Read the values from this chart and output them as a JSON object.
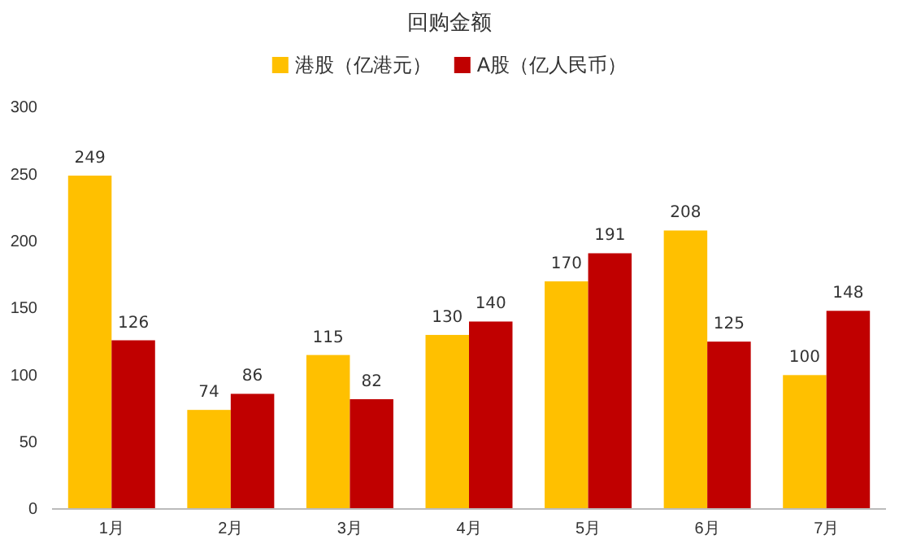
{
  "chart_data": {
    "type": "bar",
    "title": "回购金额",
    "categories": [
      "1月",
      "2月",
      "3月",
      "4月",
      "5月",
      "6月",
      "7月"
    ],
    "series": [
      {
        "name": "港股（亿港元）",
        "color": "#ffc000",
        "values": [
          249,
          74,
          115,
          130,
          170,
          208,
          100
        ]
      },
      {
        "name": "A股（亿人民币）",
        "color": "#c00000",
        "values": [
          126,
          86,
          82,
          140,
          191,
          125,
          148
        ]
      }
    ],
    "ylim": [
      0,
      300
    ],
    "yticks": [
      0,
      50,
      100,
      150,
      200,
      250,
      300
    ],
    "data_labels": true,
    "legend": "top",
    "grid": false
  }
}
